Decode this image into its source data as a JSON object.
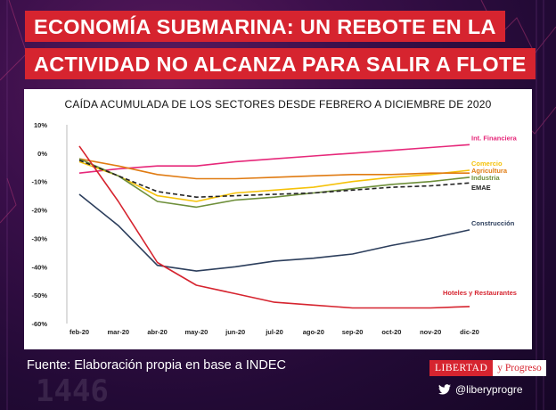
{
  "header": {
    "title_line1": "ECONOMÍA SUBMARINA: UN REBOTE EN LA",
    "title_line2": "ACTIVIDAD NO ALCANZA PARA SALIR A FLOTE"
  },
  "footer": {
    "source": "Fuente: Elaboración propia en base a INDEC",
    "logo_left": "LIBERTAD",
    "logo_right": "y Progreso",
    "twitter_handle": "@liberyprogre",
    "twitter_icon": "twitter-bird-icon"
  },
  "colors": {
    "brand_red": "#d6242f",
    "background": "#2a0c3e"
  },
  "chart_data": {
    "type": "line",
    "title": "CAÍDA ACUMULADA DE LOS SECTORES DESDE FEBRERO A DICIEMBRE DE 2020",
    "xlabel": "",
    "ylabel": "",
    "categories": [
      "feb-20",
      "mar-20",
      "abr-20",
      "may-20",
      "jun-20",
      "jul-20",
      "ago-20",
      "sep-20",
      "oct-20",
      "nov-20",
      "dic-20"
    ],
    "ylim": [
      -60,
      10
    ],
    "yticks": [
      10,
      0,
      -10,
      -20,
      -30,
      -40,
      -50,
      -60
    ],
    "ytick_labels": [
      "10%",
      "0%",
      "-10%",
      "-20%",
      "-30%",
      "-40%",
      "-50%",
      "-60%"
    ],
    "grid": false,
    "legend": "inline labels at line ends",
    "series": [
      {
        "name": "Int. Financiera",
        "color": "#e6287a",
        "dash": false,
        "values": [
          -7,
          -5.5,
          -4.5,
          -4.5,
          -3,
          -2,
          -1,
          0,
          1,
          2,
          3
        ]
      },
      {
        "name": "Comercio",
        "color": "#f5c20a",
        "dash": false,
        "values": [
          -3,
          -8,
          -15,
          -17,
          -14,
          -13,
          -12,
          -10,
          -8.5,
          -7.5,
          -6
        ]
      },
      {
        "name": "Agricultura",
        "color": "#e07b12",
        "dash": false,
        "values": [
          -2,
          -4.5,
          -7.5,
          -9,
          -9,
          -8.5,
          -8,
          -7.5,
          -7.5,
          -7,
          -7
        ]
      },
      {
        "name": "Industria",
        "color": "#6e8f3a",
        "dash": false,
        "values": [
          -2,
          -8,
          -17,
          -19,
          -16.5,
          -15.5,
          -14,
          -12.5,
          -11,
          -10,
          -8.5
        ]
      },
      {
        "name": "EMAE",
        "color": "#222222",
        "dash": true,
        "values": [
          -2.5,
          -8,
          -13.5,
          -15.5,
          -15,
          -14.5,
          -14,
          -13,
          -12,
          -11.5,
          -10.5
        ]
      },
      {
        "name": "Construcción",
        "color": "#2c3e5c",
        "dash": false,
        "values": [
          -14.5,
          -25.5,
          -39.5,
          -41.5,
          -40,
          -38,
          -37,
          -35.5,
          -32.5,
          -30,
          -27
        ]
      },
      {
        "name": "Hoteles y Restaurantes",
        "color": "#d6242f",
        "dash": false,
        "values": [
          2.5,
          -17,
          -38.5,
          -46.5,
          -49.5,
          -52.5,
          -53.5,
          -54.5,
          -54.5,
          -54.5,
          -54
        ]
      }
    ]
  }
}
